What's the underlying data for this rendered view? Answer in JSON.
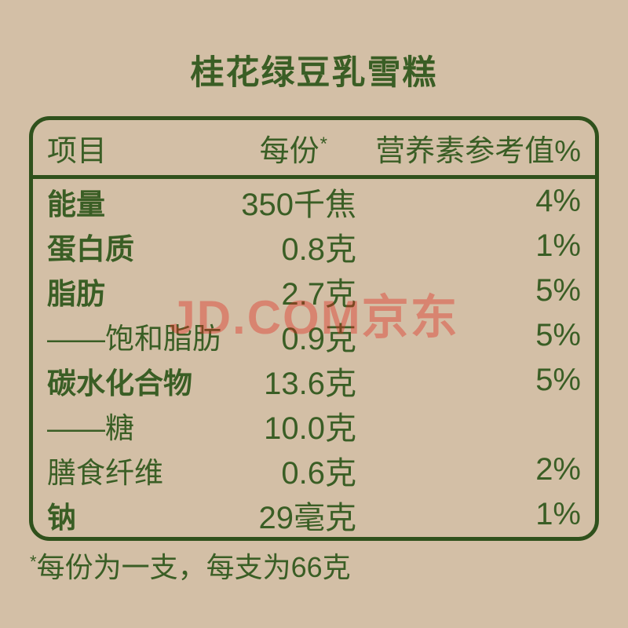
{
  "title": "桂花绿豆乳雪糕",
  "watermark": "JD.COM京东",
  "colors": {
    "background": "#d3bfa6",
    "green_text": "#3a5e25",
    "green_border": "#2f511c",
    "watermark_red": "#e1251b"
  },
  "table": {
    "header": {
      "item": "项目",
      "per_serving": "每份",
      "per_serving_marker": "*",
      "nrv": "营养素参考值%"
    },
    "rows": [
      {
        "label": "能量",
        "value": "350千焦",
        "nrv": "4%"
      },
      {
        "label": "蛋白质",
        "value": "0.8克",
        "nrv": "1%"
      },
      {
        "label": "脂肪",
        "value": "2.7克",
        "nrv": "5%"
      },
      {
        "label": "——饱和脂肪",
        "value": "0.9克",
        "nrv": "5%"
      },
      {
        "label": "碳水化合物",
        "value": "13.6克",
        "nrv": "5%"
      },
      {
        "label": "——糖",
        "value": "10.0克",
        "nrv": ""
      },
      {
        "label": "膳食纤维",
        "value": "0.6克",
        "nrv": "2%"
      },
      {
        "label": "钠",
        "value": "29毫克",
        "nrv": "1%"
      }
    ]
  },
  "footnote": {
    "marker": "*",
    "text": "每份为一支，每支为66克"
  }
}
